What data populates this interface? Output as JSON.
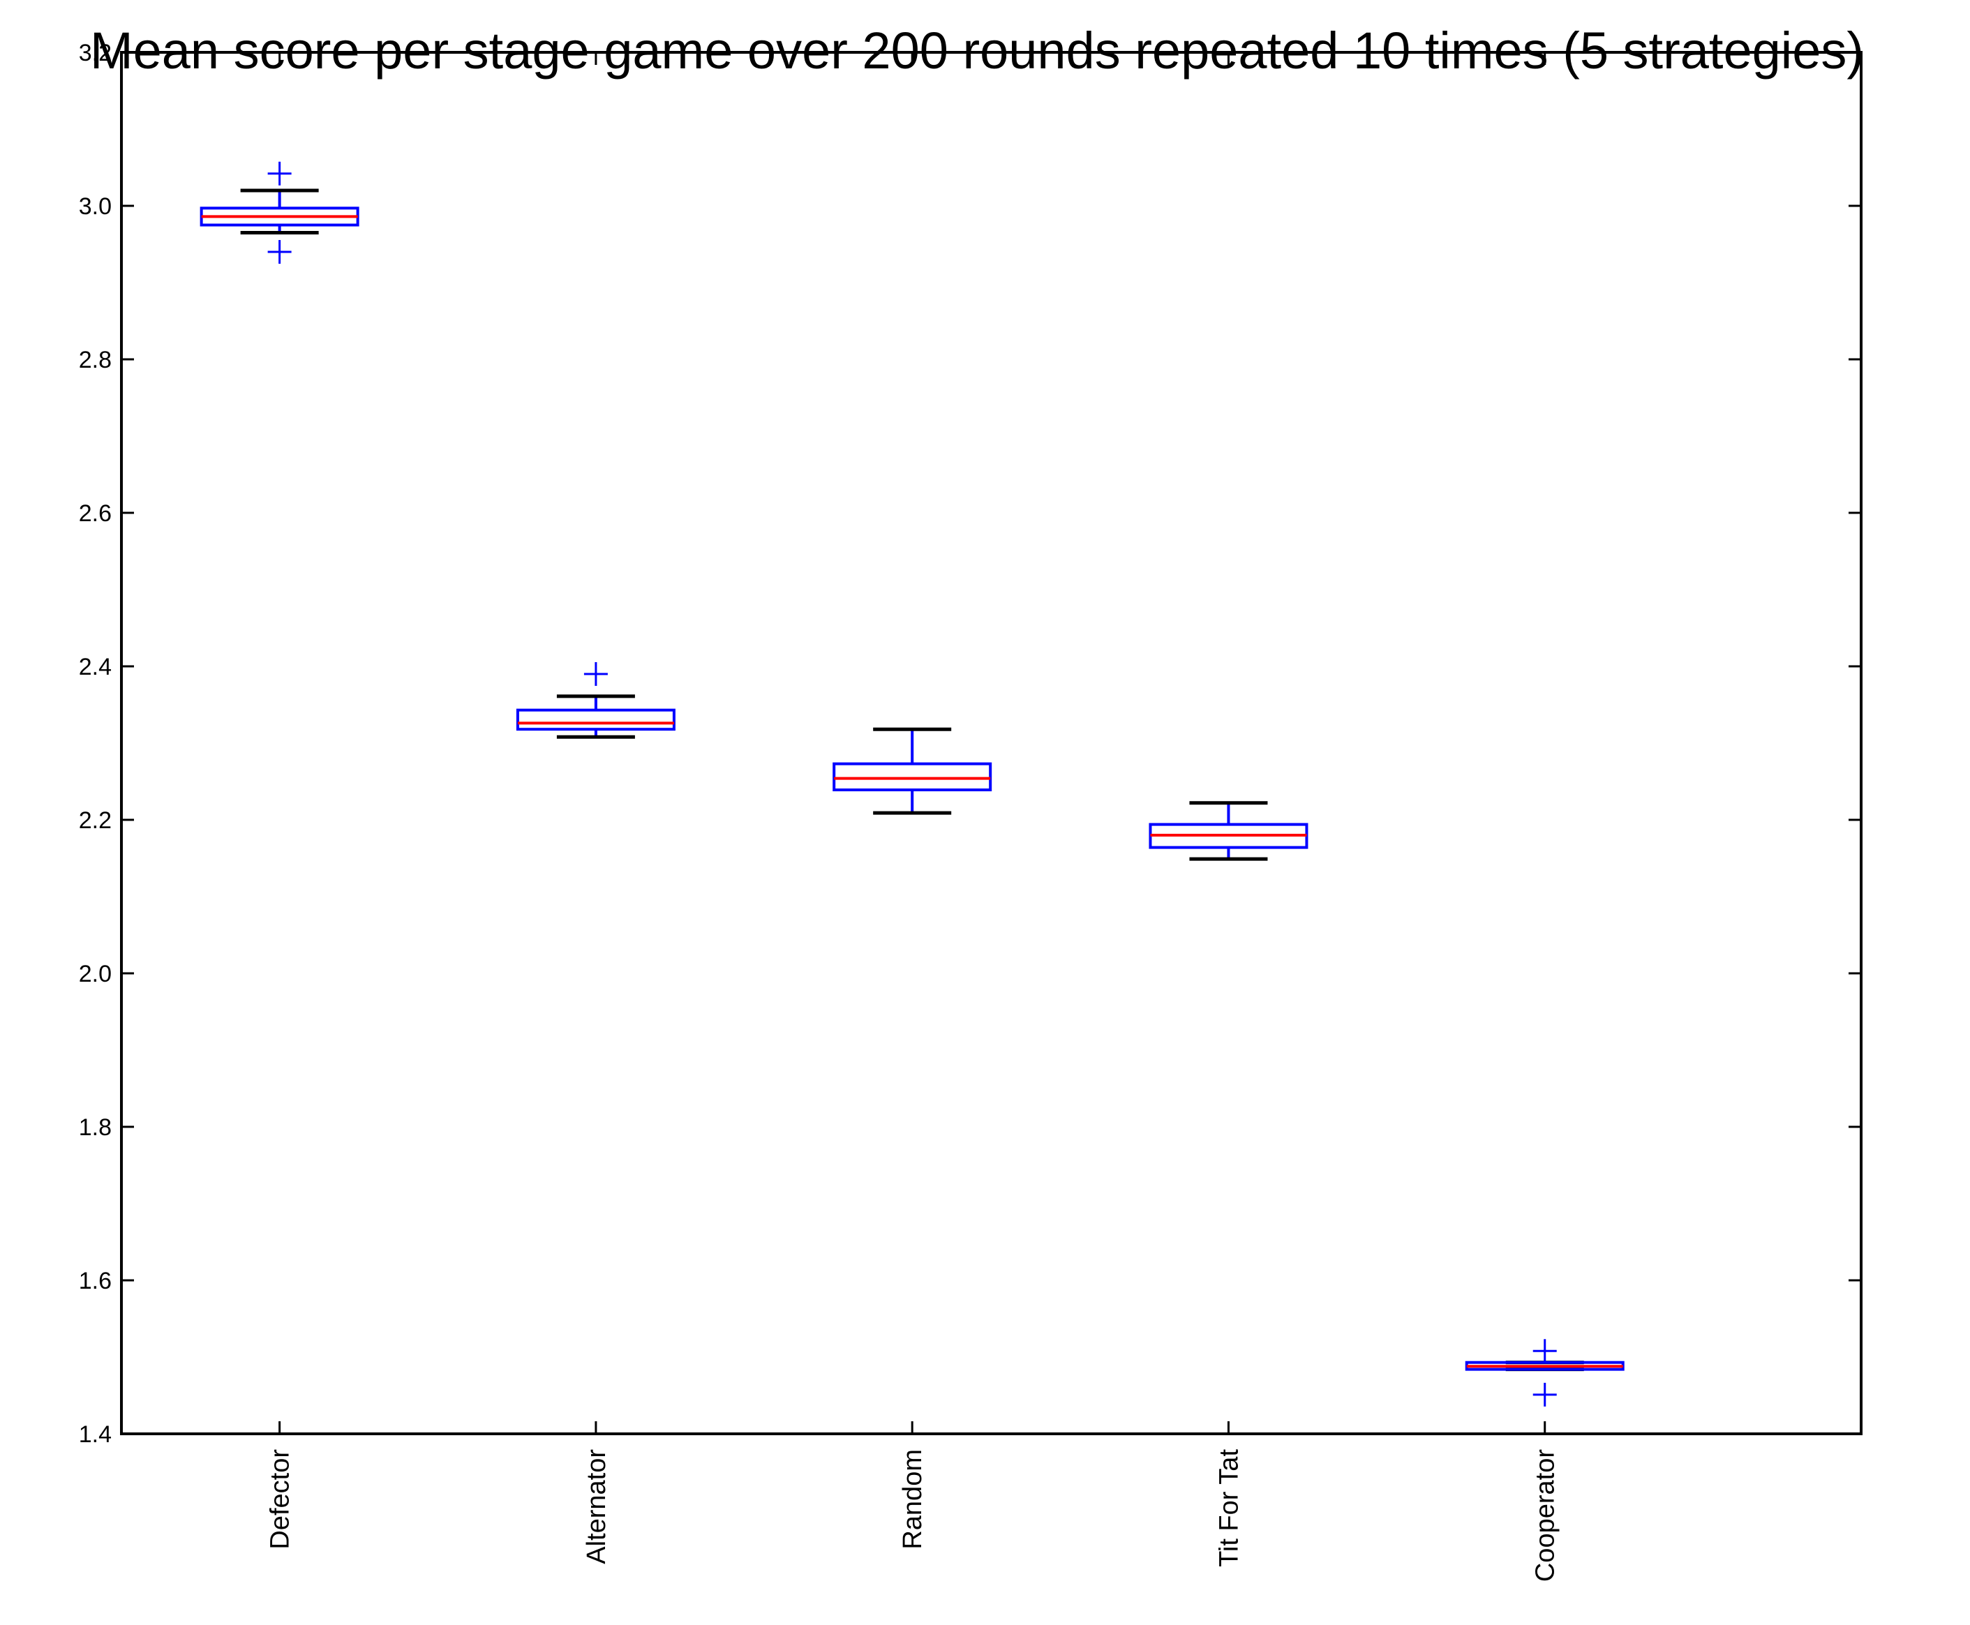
{
  "chart_data": {
    "type": "boxplot",
    "title": "Mean score per stage game over 200 rounds repeated 10 times (5 strategies)",
    "xlabel": "",
    "ylabel": "",
    "ylim": [
      1.4,
      3.2
    ],
    "yticks": [
      "1.4",
      "1.6",
      "1.8",
      "2.0",
      "2.2",
      "2.4",
      "2.6",
      "2.8",
      "3.0",
      "3.2"
    ],
    "grid": false,
    "colors": {
      "box": "#0000ff",
      "median": "#ff0000",
      "whisker_cap": "#000000",
      "flier": "#0000ff",
      "axes": "#000000"
    },
    "categories": [
      "Defector",
      "Alternator",
      "Random",
      "Tit For Tat",
      "Cooperator"
    ],
    "boxes": [
      {
        "name": "Defector",
        "whisker_low": 2.965,
        "q1": 2.975,
        "median": 2.986,
        "q3": 2.997,
        "whisker_high": 3.02,
        "fliers": [
          3.042,
          2.94
        ]
      },
      {
        "name": "Alternator",
        "whisker_low": 2.308,
        "q1": 2.318,
        "median": 2.326,
        "q3": 2.343,
        "whisker_high": 2.361,
        "fliers": [
          2.39
        ]
      },
      {
        "name": "Random",
        "whisker_low": 2.209,
        "q1": 2.239,
        "median": 2.254,
        "q3": 2.273,
        "whisker_high": 2.318,
        "fliers": []
      },
      {
        "name": "Tit For Tat",
        "whisker_low": 2.149,
        "q1": 2.164,
        "median": 2.18,
        "q3": 2.194,
        "whisker_high": 2.222,
        "fliers": []
      },
      {
        "name": "Cooperator",
        "whisker_low": 1.484,
        "q1": 1.484,
        "median": 1.488,
        "q3": 1.493,
        "whisker_high": 1.493,
        "fliers": [
          1.508,
          1.451
        ]
      }
    ]
  }
}
